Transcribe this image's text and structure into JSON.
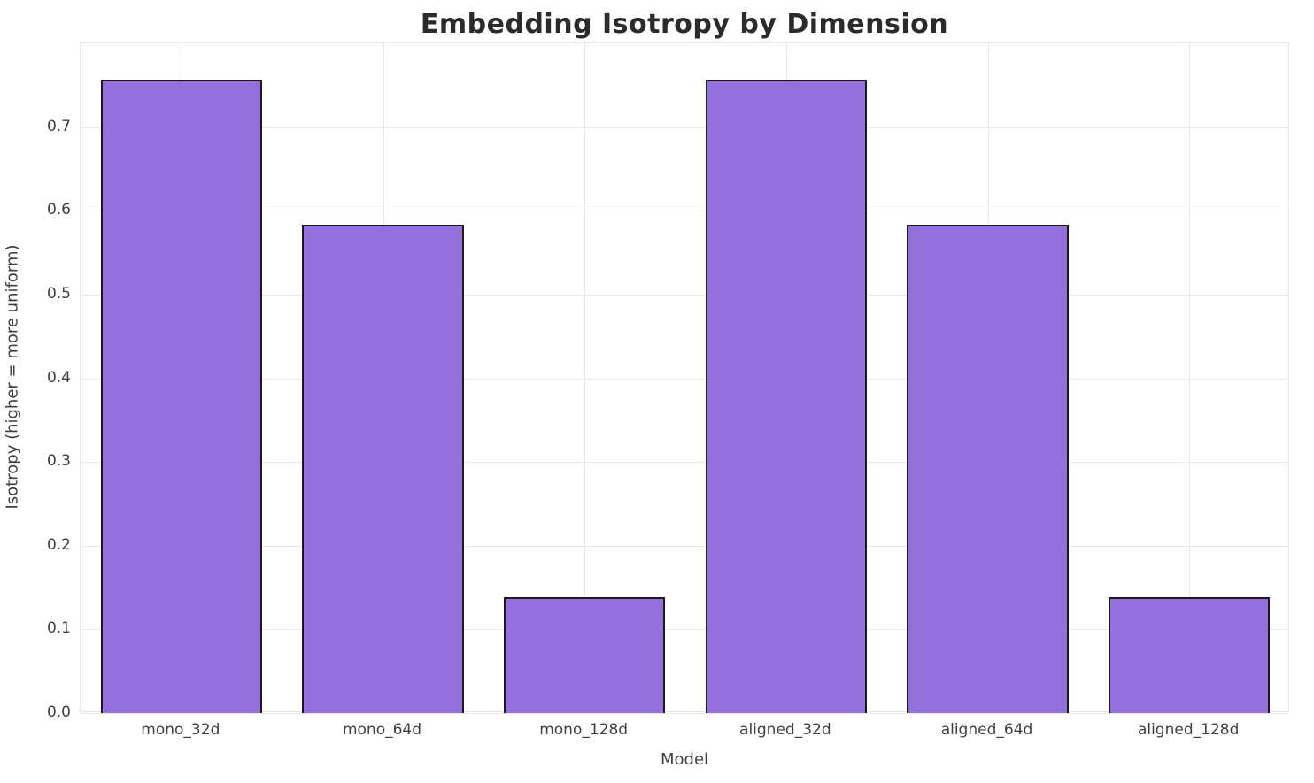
{
  "chart_data": {
    "type": "bar",
    "title": "Embedding Isotropy by Dimension",
    "xlabel": "Model",
    "ylabel": "Isotropy (higher = more uniform)",
    "categories": [
      "mono_32d",
      "mono_64d",
      "mono_128d",
      "aligned_32d",
      "aligned_64d",
      "aligned_128d"
    ],
    "values": [
      0.757,
      0.583,
      0.138,
      0.757,
      0.583,
      0.138
    ],
    "yticks": [
      0.0,
      0.1,
      0.2,
      0.3,
      0.4,
      0.5,
      0.6,
      0.7
    ],
    "ylim": [
      0,
      0.8
    ],
    "grid": true,
    "legend_position": "none",
    "bar_color": "#9370DB",
    "bar_edge_color": "#1a1a1a"
  }
}
